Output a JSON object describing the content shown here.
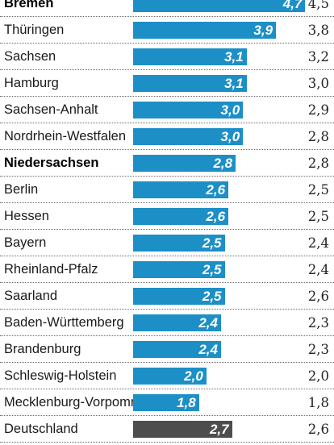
{
  "chart_data": {
    "type": "bar",
    "orientation": "horizontal",
    "categories": [
      "Bremen",
      "Thüringen",
      "Sachsen",
      "Hamburg",
      "Sachsen-Anhalt",
      "Nordrhein-Westfalen",
      "Niedersachsen",
      "Berlin",
      "Hessen",
      "Bayern",
      "Rheinland-Pfalz",
      "Saarland",
      "Baden-Württemberg",
      "Brandenburg",
      "Schleswig-Holstein",
      "Mecklenburg-Vorpommern",
      "Deutschland"
    ],
    "bold_categories": [
      "Bremen",
      "Niedersachsen"
    ],
    "total_category": "Deutschland",
    "series": [
      {
        "values": [
          "4,7",
          "3,9",
          "3,1",
          "3,1",
          "3,0",
          "3,0",
          "2,8",
          "2,6",
          "2,6",
          "2,5",
          "2,5",
          "2,5",
          "2,4",
          "2,4",
          "2,0",
          "1,8",
          "2,7"
        ]
      },
      {
        "values": [
          "4,5",
          "3,8",
          "3,2",
          "3,0",
          "2,9",
          "2,8",
          "2,8",
          "2,5",
          "2,5",
          "2,4",
          "2,4",
          "2,6",
          "2,3",
          "2,3",
          "2,0",
          "1,8",
          "2,6"
        ]
      }
    ],
    "xlim": [
      0,
      5
    ],
    "colors": {
      "bar": "#1c8fc7",
      "total_bar": "#4d4d4d"
    }
  }
}
